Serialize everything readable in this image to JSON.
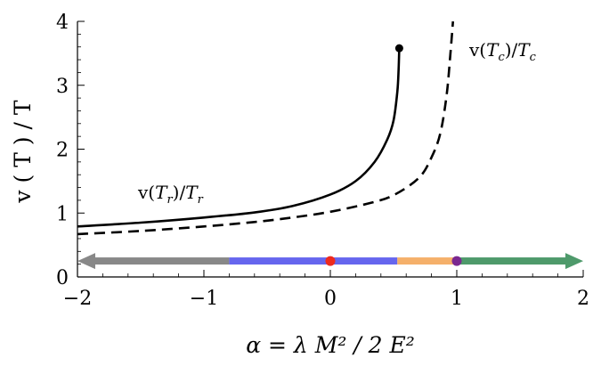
{
  "chart_data": {
    "type": "line",
    "xlabel": "α = λ M² / 2 E²",
    "ylabel": "v ( T )  /  T",
    "xlim": [
      -2,
      2
    ],
    "ylim": [
      0,
      4
    ],
    "xticks": [
      -2,
      -1,
      0,
      1,
      2
    ],
    "yticks": [
      0,
      1,
      2,
      3,
      4
    ],
    "xtick_labels": [
      "−2",
      "−1",
      "0",
      "1",
      "2"
    ],
    "ytick_labels": [
      "0",
      "1",
      "2",
      "3",
      "4"
    ],
    "grid": false,
    "series": [
      {
        "name": "v(T_r)/T_r",
        "label_main": "v(",
        "label_var": "T",
        "label_sub": "r",
        "label_mid": ")/",
        "label_var2": "T",
        "label_sub2": "r",
        "style": "solid",
        "color": "#000000",
        "endpoint_marker": true,
        "x": [
          -2.0,
          -1.5,
          -1.0,
          -0.6,
          -0.3,
          0.0,
          0.2,
          0.35,
          0.45,
          0.5,
          0.53,
          0.54,
          0.545
        ],
        "y": [
          0.79,
          0.85,
          0.93,
          1.01,
          1.11,
          1.29,
          1.5,
          1.8,
          2.15,
          2.45,
          2.9,
          3.25,
          3.58
        ]
      },
      {
        "name": "v(T_c)/T_c",
        "label_main": "v(",
        "label_var": "T",
        "label_sub": "c",
        "label_mid": ")/",
        "label_var2": "T",
        "label_sub2": "c",
        "style": "dashed",
        "color": "#000000",
        "endpoint_marker": false,
        "x": [
          -2.0,
          -1.5,
          -1.0,
          -0.6,
          -0.3,
          0.0,
          0.3,
          0.5,
          0.7,
          0.8,
          0.87,
          0.92,
          0.95,
          0.97
        ],
        "y": [
          0.67,
          0.72,
          0.79,
          0.86,
          0.93,
          1.02,
          1.15,
          1.28,
          1.55,
          1.87,
          2.25,
          2.85,
          3.5,
          4.0
        ]
      }
    ],
    "band": {
      "y": 0.25,
      "segments": [
        {
          "x0": -2.0,
          "x1": -0.8,
          "color": "#888888"
        },
        {
          "x0": -0.8,
          "x1": 0.53,
          "color": "#6666ee"
        },
        {
          "x0": 0.53,
          "x1": 0.98,
          "color": "#f5b06a"
        },
        {
          "x0": 0.98,
          "x1": 2.0,
          "color": "#4e9a6b"
        }
      ],
      "points": [
        {
          "x": 0.0,
          "color": "#ee2a1e"
        },
        {
          "x": 1.0,
          "color": "#7b2890"
        }
      ]
    }
  }
}
